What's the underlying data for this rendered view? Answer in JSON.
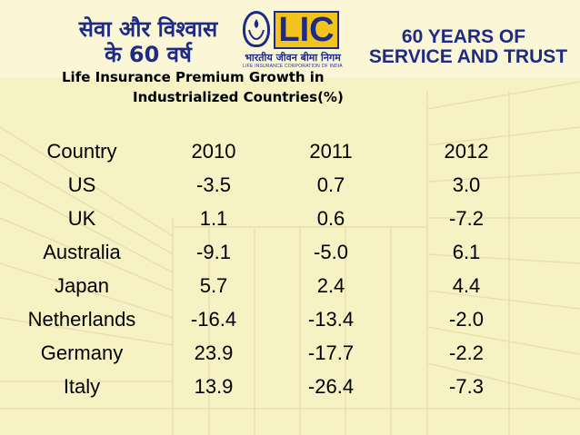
{
  "header": {
    "hindi_title_line1": "सेवा और विश्वास",
    "hindi_title_line2": "के 60 वर्ष",
    "logo": {
      "text": "LIC",
      "hindi": "भारतीय जीवन बीमा निगम",
      "english": "LIFE INSURANCE CORPORATION OF INDIA"
    },
    "tagline_line1": "60 YEARS OF",
    "tagline_line2": "SERVICE AND TRUST"
  },
  "title_line1": "Life Insurance Premium Growth in",
  "title_line2": "Industrialized Countries(%)",
  "table": {
    "headers": [
      "Country",
      "2010",
      "2011",
      "2012"
    ],
    "rows": [
      [
        "US",
        "-3.5",
        "0.7",
        "3.0"
      ],
      [
        "UK",
        "1.1",
        "0.6",
        "-7.2"
      ],
      [
        "Australia",
        "-9.1",
        "-5.0",
        "6.1"
      ],
      [
        "Japan",
        "5.7",
        "2.4",
        "4.4"
      ],
      [
        "Netherlands",
        "-16.4",
        "-13.4",
        "-2.0"
      ],
      [
        "Germany",
        "23.9",
        "-17.7",
        "-2.2"
      ],
      [
        "Italy",
        "13.9",
        "-26.4",
        "-7.3"
      ]
    ]
  },
  "colors": {
    "brand_blue": "#1d2b86",
    "lic_yellow": "#f2c31c",
    "background": "#f7f2c4"
  }
}
